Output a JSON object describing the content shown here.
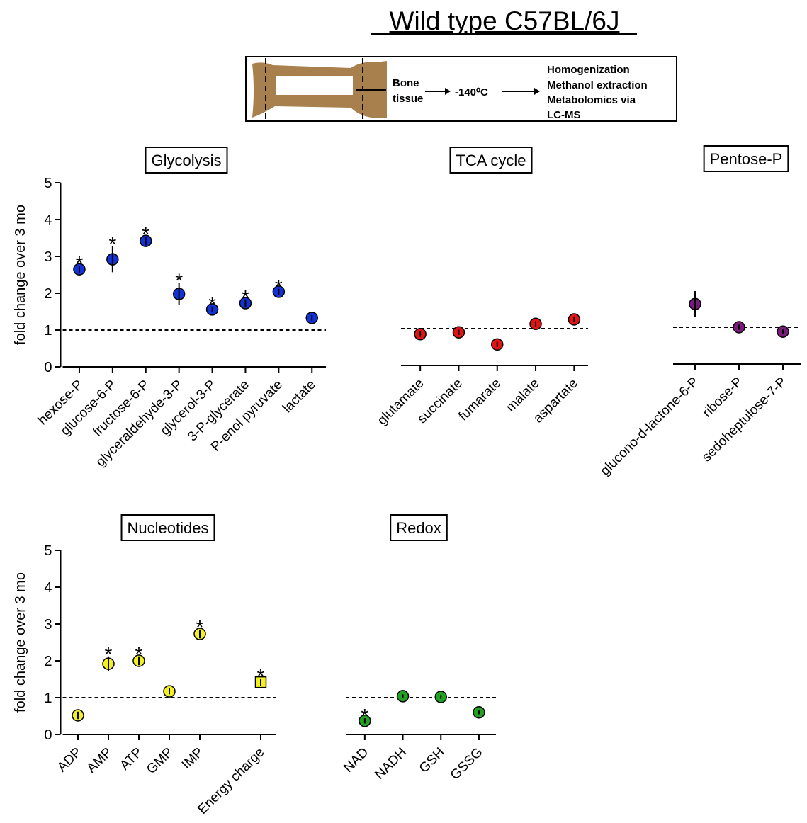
{
  "title": "Wild type C57BL/6J",
  "diagram": {
    "step1": [
      "Bone",
      "tissue"
    ],
    "step2": "-140⁰C",
    "step3": [
      "Homogenization",
      "Methanol extraction",
      "Metabolomics via",
      "LC-MS"
    ]
  },
  "chart_data": [
    {
      "type": "scatter",
      "title": "Glycolysis",
      "y_label": "fold change over 3 mo",
      "color": "#1232d6",
      "categories": [
        "hexose-P",
        "glucose-6-P",
        "fructose-6-P",
        "glyceraldehyde-3-P",
        "glycerol-3-P",
        "3-P-glycerate",
        "P-enol pyruvate",
        "lactate"
      ],
      "values": [
        2.65,
        2.92,
        3.42,
        1.98,
        1.56,
        1.73,
        2.04,
        1.33
      ],
      "errors": [
        0.1,
        0.35,
        0.12,
        0.3,
        0.08,
        0.1,
        0.08,
        0.08
      ],
      "stars": [
        "*",
        "*",
        "*",
        "*",
        "*",
        "*",
        "*",
        null
      ],
      "ylim": [
        0,
        5
      ],
      "yticks": [
        0,
        1,
        2,
        3,
        4,
        5
      ],
      "reference_line": 1
    },
    {
      "type": "scatter",
      "title": "TCA cycle",
      "color": "#e01414",
      "categories": [
        "glutamate",
        "succinate",
        "fumarate",
        "malate",
        "aspartate"
      ],
      "values": [
        0.85,
        0.9,
        0.57,
        1.13,
        1.25
      ],
      "errors": [
        0.07,
        0.07,
        0.07,
        0.07,
        0.07
      ],
      "ylim": [
        0,
        5
      ],
      "reference_line": 1
    },
    {
      "type": "scatter",
      "title": "Pentose-P",
      "color": "#7a1a7a",
      "categories": [
        "glucono-d-lactone-6-P",
        "ribose-P",
        "sedoheptulose-7-P"
      ],
      "values": [
        1.63,
        1.0,
        0.88
      ],
      "errors": [
        0.35,
        0.07,
        0.07
      ],
      "ylim": [
        0,
        5
      ],
      "reference_line": 1
    },
    {
      "type": "scatter",
      "title": "Nucleotides",
      "y_label": "fold change over 3 mo",
      "color": "#f2f020",
      "categories": [
        "ADP",
        "AMP",
        "ATP",
        "GMP",
        "IMP",
        null,
        "Energy charge"
      ],
      "values": [
        0.52,
        1.92,
        2.0,
        1.17,
        2.73,
        null,
        1.42
      ],
      "errors": [
        0.1,
        0.2,
        0.12,
        0.08,
        0.12,
        null,
        0.1
      ],
      "stars": [
        null,
        "*",
        "*",
        null,
        "*",
        null,
        "*"
      ],
      "markers": [
        "circle",
        "circle",
        "circle",
        "circle",
        "circle",
        null,
        "square"
      ],
      "ylim": [
        0,
        5
      ],
      "yticks": [
        0,
        1,
        2,
        3,
        4,
        5
      ],
      "reference_line": 1
    },
    {
      "type": "scatter",
      "title": "Redox",
      "color": "#22a022",
      "categories": [
        "NAD",
        "NADH",
        "GSH",
        "GSSG"
      ],
      "values": [
        0.37,
        1.04,
        1.02,
        0.6
      ],
      "errors": [
        0.07,
        0.05,
        0.05,
        0.05
      ],
      "stars": [
        "*",
        null,
        null,
        null
      ],
      "ylim": [
        0,
        5
      ],
      "reference_line": 1
    }
  ]
}
